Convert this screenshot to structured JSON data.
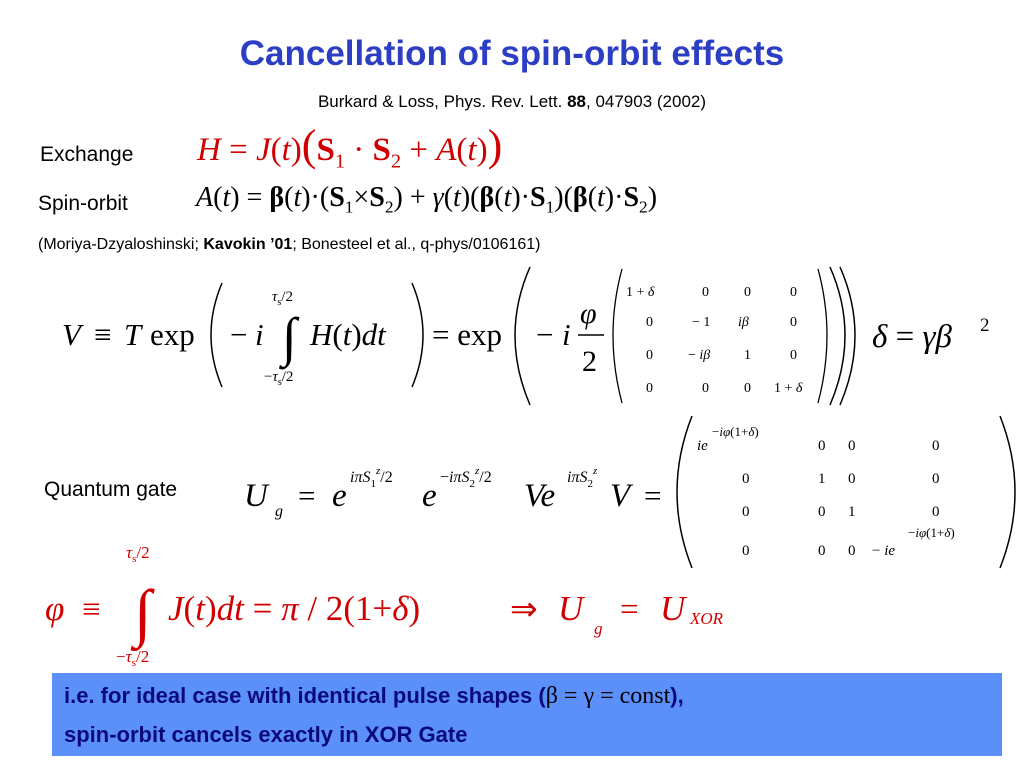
{
  "title": "Cancellation of spin-orbit effects",
  "citation": {
    "authors": "Burkard & Loss, Phys. Rev. Lett. ",
    "volume": "88",
    "rest": ", 047903 (2002)"
  },
  "labels": {
    "exchange": "Exchange",
    "spin_orbit": "Spin-orbit",
    "quantum_gate": "Quantum gate"
  },
  "references": {
    "part1": "(Moriya-Dzyaloshinski; ",
    "bold": "Kavokin ’01",
    "part2": "; Bonesteel et al., q-phys/0106161)"
  },
  "banner": {
    "line1_text": "i.e. for ideal case with identical pulse shapes (",
    "line1_math": "β = γ = const",
    "line1_end": "),",
    "line2": "spin-orbit cancels exactly in XOR Gate",
    "background": "#5b8ff9",
    "text_color": "#0a0a7a"
  },
  "colors": {
    "title": "#2b3ec4",
    "equation_red": "#d10000"
  }
}
